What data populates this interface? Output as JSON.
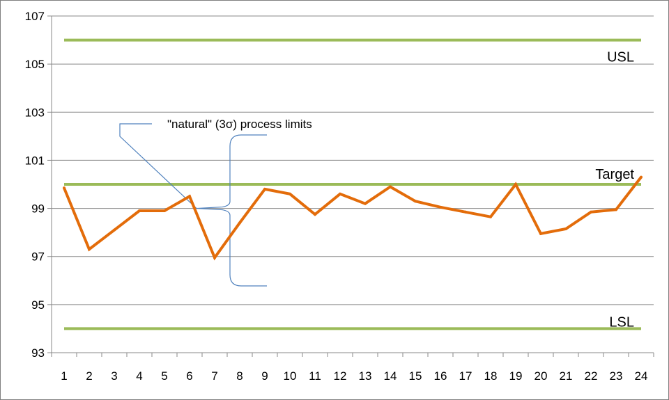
{
  "chart_data": {
    "type": "line",
    "title": "",
    "xlabel": "",
    "ylabel": "",
    "ylim": [
      93,
      107
    ],
    "y_ticks": [
      93,
      95,
      97,
      99,
      101,
      103,
      105,
      107
    ],
    "grid": "horizontal",
    "categories": [
      "1",
      "2",
      "3",
      "4",
      "5",
      "6",
      "7",
      "8",
      "9",
      "10",
      "11",
      "12",
      "13",
      "14",
      "15",
      "16",
      "17",
      "18",
      "19",
      "20",
      "21",
      "22",
      "23",
      "24"
    ],
    "series": [
      {
        "color": "#e36c0a",
        "values": [
          99.85,
          97.3,
          98.1,
          98.9,
          98.9,
          99.5,
          96.95,
          98.4,
          99.8,
          99.6,
          98.75,
          99.6,
          99.2,
          99.9,
          99.3,
          99.05,
          98.85,
          98.65,
          100.0,
          97.95,
          98.15,
          98.85,
          98.95,
          100.3
        ]
      }
    ],
    "reference_lines": [
      {
        "label": "USL",
        "value": 106,
        "color": "#9bbb59"
      },
      {
        "label": "Target",
        "value": 100,
        "color": "#9bbb59"
      },
      {
        "label": "LSL",
        "value": 94,
        "color": "#9bbb59"
      }
    ],
    "annotation": {
      "text": "\"natural\" (3σ) process limits",
      "color": "#4f81bd"
    }
  }
}
